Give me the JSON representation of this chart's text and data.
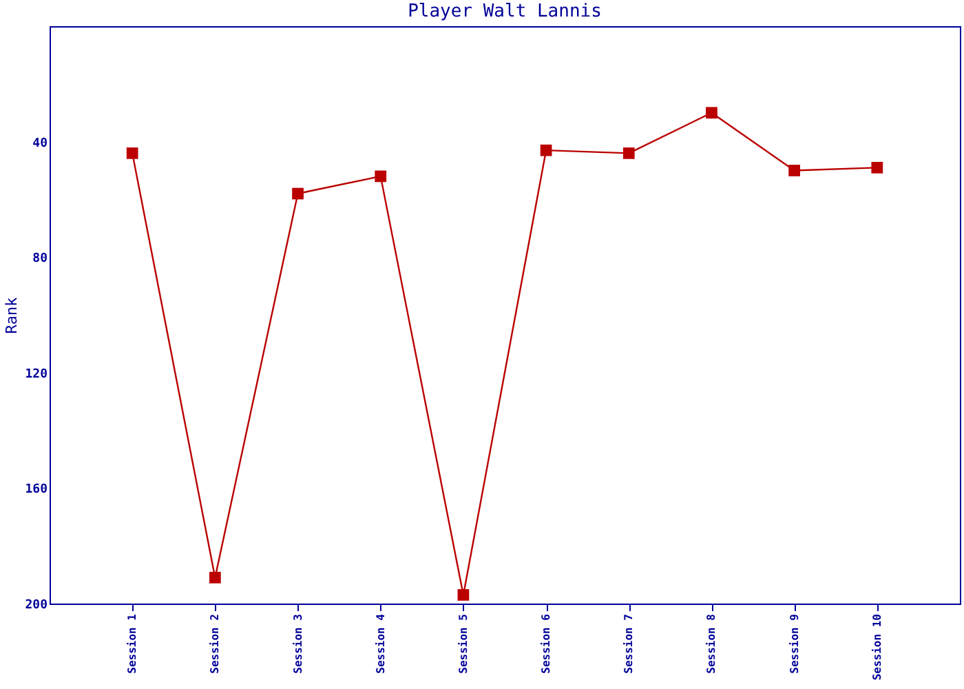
{
  "chart_data": {
    "type": "line",
    "title": "Player Walt Lannis",
    "ylabel": "Rank",
    "categories": [
      "Session 1",
      "Session 2",
      "Session 3",
      "Session 4",
      "Session 5",
      "Session 6",
      "Session 7",
      "Session 8",
      "Session 9",
      "Session 10"
    ],
    "series": [
      {
        "color": "#bb0000",
        "values": [
          44,
          191,
          58,
          52,
          197,
          43,
          44,
          30,
          50,
          49
        ]
      }
    ],
    "ylim": [
      200,
      0
    ],
    "yticks": [
      40,
      80,
      120,
      160,
      200
    ],
    "grid": false,
    "legend": false,
    "marker": "square",
    "line_style": "solid"
  }
}
